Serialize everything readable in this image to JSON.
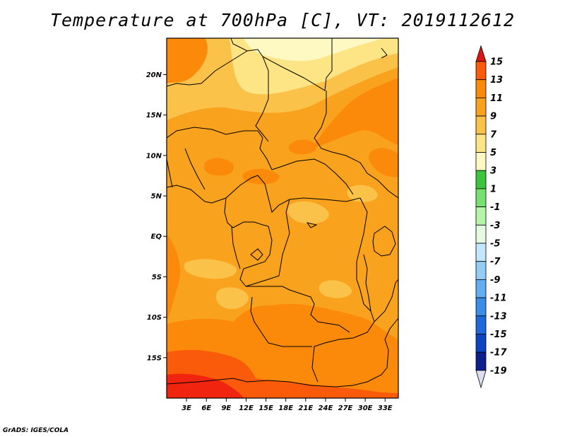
{
  "title": "Temperature at 700hPa [C], VT: 2019112612",
  "credit": "GrADS: IGES/COLA",
  "map": {
    "lat_range": [
      -20,
      24.5
    ],
    "lon_range": [
      0,
      35
    ],
    "lat_ticks": [
      {
        "lat": 20,
        "label": "20N"
      },
      {
        "lat": 15,
        "label": "15N"
      },
      {
        "lat": 10,
        "label": "10N"
      },
      {
        "lat": 5,
        "label": "5N"
      },
      {
        "lat": 0,
        "label": "EQ"
      },
      {
        "lat": -5,
        "label": "5S"
      },
      {
        "lat": -10,
        "label": "10S"
      },
      {
        "lat": -15,
        "label": "15S"
      }
    ],
    "lon_ticks": [
      {
        "lon": 3,
        "label": "3E"
      },
      {
        "lon": 6,
        "label": "6E"
      },
      {
        "lon": 9,
        "label": "9E"
      },
      {
        "lon": 12,
        "label": "12E"
      },
      {
        "lon": 15,
        "label": "15E"
      },
      {
        "lon": 18,
        "label": "18E"
      },
      {
        "lon": 21,
        "label": "21E"
      },
      {
        "lon": 24,
        "label": "24E"
      },
      {
        "lon": 27,
        "label": "27E"
      },
      {
        "lon": 30,
        "label": "30E"
      },
      {
        "lon": 33,
        "label": "33E"
      }
    ]
  },
  "colorbar": {
    "levels": [
      "15",
      "13",
      "11",
      "9",
      "7",
      "5",
      "3",
      "1",
      "-1",
      "-3",
      "-5",
      "-7",
      "-9",
      "-11",
      "-13",
      "-15",
      "-17",
      "-19"
    ],
    "colors": [
      "#f0240f",
      "#fa5b0b",
      "#fb8a0a",
      "#f9a21e",
      "#fbc24a",
      "#fde485",
      "#fef8c2",
      "#3cc43c",
      "#77e170",
      "#b4f5a8",
      "#e4fbe0",
      "#c2e6fb",
      "#94ccf6",
      "#63aef1",
      "#3b8ee8",
      "#2068da",
      "#0c44c2",
      "#0d1f8b",
      "#061064"
    ],
    "top_arrow_color": "#dc1414",
    "bottom_arrow_color": "#ddddf0"
  },
  "field_colors": {
    "c15": "#f0240f",
    "c13": "#fa5b0b",
    "c11": "#fb8a0a",
    "c9": "#f9a21e",
    "c7": "#fbc24a",
    "c5": "#fde485",
    "c3": "#fef8c2"
  }
}
